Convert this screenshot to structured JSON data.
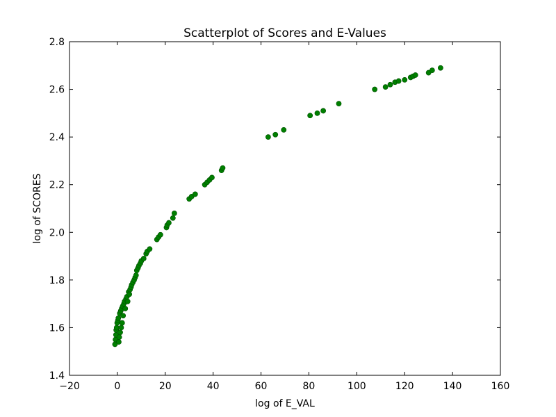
{
  "chart_data": {
    "type": "scatter",
    "title": "Scatterplot of Scores and E-Values",
    "xlabel": "log of E_VAL",
    "ylabel": "log of SCORES",
    "xlim": [
      -20,
      160
    ],
    "ylim": [
      1.4,
      2.8
    ],
    "xticks": [
      -20,
      0,
      20,
      40,
      60,
      80,
      100,
      120,
      140,
      160
    ],
    "yticks": [
      1.4,
      1.6,
      1.8,
      2.0,
      2.2,
      2.4,
      2.6,
      2.8
    ],
    "xtick_labels": [
      "−20",
      "0",
      "20",
      "40",
      "60",
      "80",
      "100",
      "120",
      "140",
      "160"
    ],
    "ytick_labels": [
      "1.4",
      "1.6",
      "1.8",
      "2.0",
      "2.2",
      "2.4",
      "2.6",
      "2.8"
    ],
    "grid": false,
    "marker_color": "#007f00",
    "series": [
      {
        "points": [
          [
            -1,
            1.53
          ],
          [
            -0.8,
            1.55
          ],
          [
            -0.6,
            1.57
          ],
          [
            -0.5,
            1.59
          ],
          [
            -0.3,
            1.6
          ],
          [
            -0.1,
            1.62
          ],
          [
            0.2,
            1.63
          ],
          [
            0.4,
            1.64
          ],
          [
            0.6,
            1.54
          ],
          [
            0.8,
            1.56
          ],
          [
            1.0,
            1.66
          ],
          [
            1.2,
            1.58
          ],
          [
            1.4,
            1.67
          ],
          [
            1.6,
            1.6
          ],
          [
            1.8,
            1.68
          ],
          [
            2.0,
            1.62
          ],
          [
            2.2,
            1.69
          ],
          [
            2.4,
            1.65
          ],
          [
            2.7,
            1.7
          ],
          [
            3.0,
            1.71
          ],
          [
            3.3,
            1.68
          ],
          [
            3.6,
            1.72
          ],
          [
            4.0,
            1.73
          ],
          [
            4.3,
            1.71
          ],
          [
            4.7,
            1.75
          ],
          [
            5.0,
            1.74
          ],
          [
            5.3,
            1.76
          ],
          [
            5.7,
            1.77
          ],
          [
            6.0,
            1.78
          ],
          [
            6.5,
            1.79
          ],
          [
            7.0,
            1.8
          ],
          [
            7.4,
            1.81
          ],
          [
            7.8,
            1.82
          ],
          [
            8.1,
            1.84
          ],
          [
            8.6,
            1.85
          ],
          [
            9.0,
            1.86
          ],
          [
            9.6,
            1.87
          ],
          [
            10.0,
            1.88
          ],
          [
            11.0,
            1.89
          ],
          [
            12.0,
            1.91
          ],
          [
            12.5,
            1.92
          ],
          [
            13.5,
            1.93
          ],
          [
            16.5,
            1.97
          ],
          [
            17.2,
            1.98
          ],
          [
            18.0,
            1.99
          ],
          [
            20.5,
            2.02
          ],
          [
            20.8,
            2.03
          ],
          [
            21.5,
            2.04
          ],
          [
            23.2,
            2.06
          ],
          [
            23.8,
            2.08
          ],
          [
            30.0,
            2.14
          ],
          [
            31.0,
            2.15
          ],
          [
            32.5,
            2.16
          ],
          [
            36.5,
            2.2
          ],
          [
            37.5,
            2.21
          ],
          [
            38.5,
            2.22
          ],
          [
            39.5,
            2.23
          ],
          [
            43.5,
            2.26
          ],
          [
            44.0,
            2.27
          ],
          [
            63.0,
            2.4
          ],
          [
            66.0,
            2.41
          ],
          [
            69.5,
            2.43
          ],
          [
            80.5,
            2.49
          ],
          [
            83.5,
            2.5
          ],
          [
            86.0,
            2.51
          ],
          [
            92.5,
            2.54
          ],
          [
            107.5,
            2.6
          ],
          [
            112.0,
            2.61
          ],
          [
            114.0,
            2.62
          ],
          [
            116.0,
            2.63
          ],
          [
            117.5,
            2.635
          ],
          [
            120.0,
            2.64
          ],
          [
            122.5,
            2.65
          ],
          [
            123.5,
            2.655
          ],
          [
            124.5,
            2.66
          ],
          [
            130.0,
            2.67
          ],
          [
            131.5,
            2.68
          ],
          [
            135.0,
            2.69
          ]
        ]
      }
    ]
  }
}
